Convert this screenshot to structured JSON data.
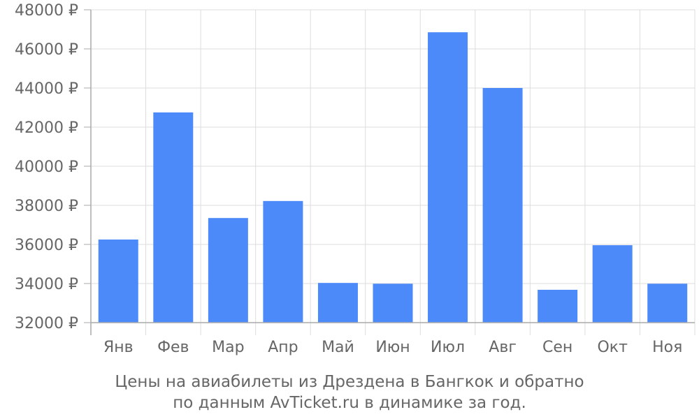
{
  "caption": {
    "line1": "Цены на авиабилеты из Дрездена в Бангкок и обратно",
    "line2": "по данным AvTicket.ru в динамике за год."
  },
  "colors": {
    "bar": "#4d8af9",
    "grid": "#dddddd",
    "axis": "#aaaaaa",
    "text": "#666666"
  },
  "chart_data": {
    "type": "bar",
    "categories": [
      "Янв",
      "Фев",
      "Мар",
      "Апр",
      "Май",
      "Июн",
      "Июл",
      "Авг",
      "Сен",
      "Окт",
      "Ноя"
    ],
    "values": [
      36250,
      42750,
      37350,
      38220,
      34030,
      33990,
      46850,
      44000,
      33680,
      35960,
      33990
    ],
    "ylim": [
      32000,
      48000
    ],
    "yticks": [
      32000,
      34000,
      36000,
      38000,
      40000,
      42000,
      44000,
      46000,
      48000
    ],
    "ytick_suffix": " ₽",
    "title": "",
    "xlabel": "",
    "ylabel": "",
    "grid": true,
    "legend": "none"
  }
}
